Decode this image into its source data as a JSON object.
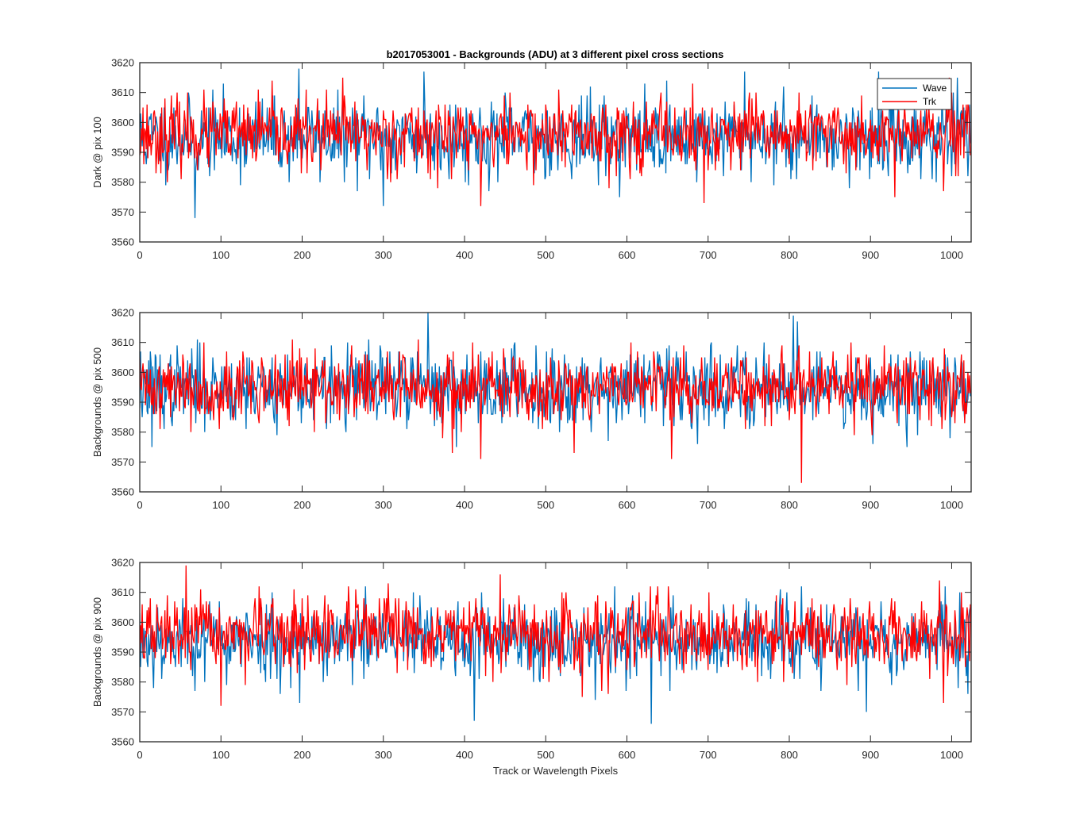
{
  "figure": {
    "title": "b2017053001 - Backgrounds (ADU) at 3 different pixel cross sections",
    "colors": {
      "Wave": "#0072BD",
      "Trk": "#FF0000",
      "axis": "#262626"
    }
  },
  "chart_data": [
    {
      "type": "line",
      "title": "b2017053001 - Backgrounds (ADU) at 3 different pixel cross sections",
      "xlabel": "",
      "ylabel": "Dark @ pix 100",
      "xlim": [
        0,
        1024
      ],
      "ylim": [
        3560,
        3620
      ],
      "xticks": [
        0,
        100,
        200,
        300,
        400,
        500,
        600,
        700,
        800,
        900,
        1000
      ],
      "yticks": [
        3560,
        3570,
        3580,
        3590,
        3600,
        3610,
        3620
      ],
      "grid": false,
      "legend": {
        "placement": "top-right",
        "entries": [
          "Wave",
          "Trk"
        ]
      },
      "series": [
        {
          "name": "Wave",
          "n": 1024,
          "mean": 3595,
          "noise_sd": 6.5,
          "seed": 11,
          "spikes": [
            [
              68,
              3568
            ],
            [
              196,
              3618
            ],
            [
              300,
              3572
            ],
            [
              350,
              3617
            ],
            [
              745,
              3617
            ],
            [
              910,
              3617
            ],
            [
              1020,
              3582
            ]
          ]
        },
        {
          "name": "Trk",
          "n": 1024,
          "mean": 3596,
          "noise_sd": 6.0,
          "seed": 23,
          "spikes": [
            [
              420,
              3572
            ],
            [
              695,
              3573
            ],
            [
              250,
              3615
            ],
            [
              930,
              3575
            ],
            [
              990,
              3577
            ]
          ]
        }
      ]
    },
    {
      "type": "line",
      "title": "",
      "xlabel": "",
      "ylabel": "Backgrounds @ pix 500",
      "xlim": [
        0,
        1024
      ],
      "ylim": [
        3560,
        3620
      ],
      "xticks": [
        0,
        100,
        200,
        300,
        400,
        500,
        600,
        700,
        800,
        900,
        1000
      ],
      "yticks": [
        3560,
        3570,
        3580,
        3590,
        3600,
        3610,
        3620
      ],
      "grid": false,
      "series": [
        {
          "name": "Wave",
          "n": 1024,
          "mean": 3595,
          "noise_sd": 6.5,
          "seed": 37,
          "spikes": [
            [
              15,
              3575
            ],
            [
              355,
              3620
            ],
            [
              805,
              3619
            ],
            [
              945,
              3575
            ],
            [
              810,
              3617
            ]
          ]
        },
        {
          "name": "Trk",
          "n": 1024,
          "mean": 3595,
          "noise_sd": 6.0,
          "seed": 41,
          "spikes": [
            [
              815,
              3563
            ],
            [
              655,
              3571
            ],
            [
              420,
              3571
            ],
            [
              385,
              3573
            ],
            [
              535,
              3573
            ]
          ]
        }
      ]
    },
    {
      "type": "line",
      "title": "",
      "xlabel": "Track or Wavelength Pixels",
      "ylabel": "Backgrounds @ pix 900",
      "xlim": [
        0,
        1024
      ],
      "ylim": [
        3560,
        3620
      ],
      "xticks": [
        0,
        100,
        200,
        300,
        400,
        500,
        600,
        700,
        800,
        900,
        1000
      ],
      "yticks": [
        3560,
        3570,
        3580,
        3590,
        3600,
        3610,
        3620
      ],
      "grid": false,
      "series": [
        {
          "name": "Wave",
          "n": 1024,
          "mean": 3594,
          "noise_sd": 6.5,
          "seed": 53,
          "spikes": [
            [
              412,
              3567
            ],
            [
              630,
              3566
            ],
            [
              895,
              3570
            ],
            [
              197,
              3573
            ],
            [
              1020,
              3576
            ]
          ]
        },
        {
          "name": "Trk",
          "n": 1024,
          "mean": 3596,
          "noise_sd": 6.0,
          "seed": 67,
          "spikes": [
            [
              57,
              3619
            ],
            [
              100,
              3572
            ],
            [
              990,
              3573
            ],
            [
              985,
              3614
            ],
            [
              545,
              3575
            ]
          ]
        }
      ]
    }
  ]
}
